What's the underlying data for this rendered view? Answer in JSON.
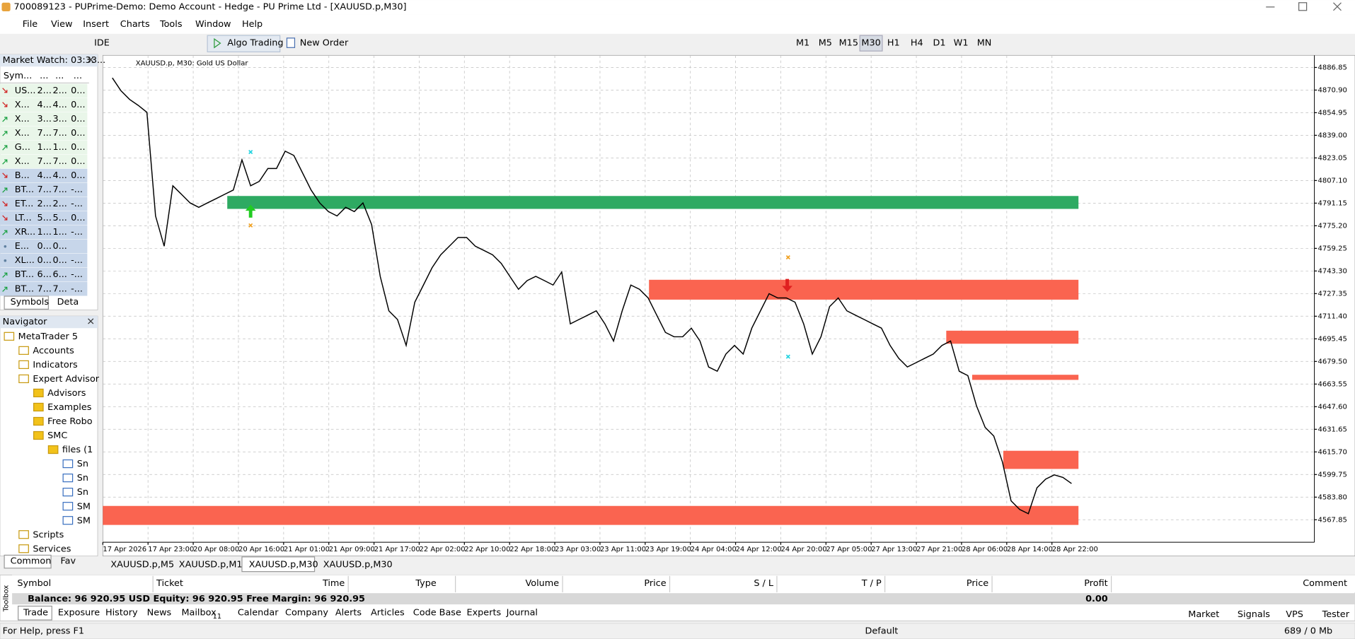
{
  "window": {
    "title": "700089123 - PUPrime-Demo: Demo Account - Hedge - PU Prime Ltd - [XAUUSD.p,M30]"
  },
  "menu": [
    "File",
    "View",
    "Insert",
    "Charts",
    "Tools",
    "Window",
    "Help"
  ],
  "toolbar": {
    "ide": "IDE",
    "algo_trading": "Algo Trading",
    "new_order": "New Order",
    "timeframes": [
      "M1",
      "M5",
      "M15",
      "M30",
      "H1",
      "H4",
      "D1",
      "W1",
      "MN"
    ],
    "active_timeframe": 3
  },
  "market_watch": {
    "title": "Market Watch: 03:33...",
    "columns": [
      "Sym...",
      "...",
      "...",
      "..."
    ],
    "rows": [
      {
        "cells": [
          "US...",
          "2...",
          "2...",
          "0..."
        ],
        "trend": "down"
      },
      {
        "cells": [
          "X...",
          "4...",
          "4...",
          "0..."
        ],
        "trend": "down"
      },
      {
        "cells": [
          "X...",
          "3...",
          "3...",
          "0..."
        ],
        "trend": "up"
      },
      {
        "cells": [
          "X...",
          "7...",
          "7...",
          "0..."
        ],
        "trend": "up"
      },
      {
        "cells": [
          "G...",
          "1...",
          "1...",
          "0..."
        ],
        "trend": "up"
      },
      {
        "cells": [
          "X...",
          "7...",
          "7...",
          "0..."
        ],
        "trend": "up"
      },
      {
        "cells": [
          "B...",
          "4...",
          "4...",
          "0..."
        ],
        "trend": "down"
      },
      {
        "cells": [
          "BT...",
          "7...",
          "7...",
          "-..."
        ],
        "trend": "up"
      },
      {
        "cells": [
          "ET...",
          "2...",
          "2...",
          "-..."
        ],
        "trend": "down"
      },
      {
        "cells": [
          "LT...",
          "5...",
          "5...",
          "0..."
        ],
        "trend": "down"
      },
      {
        "cells": [
          "XR...",
          "1...",
          "1...",
          "-..."
        ],
        "trend": "up"
      },
      {
        "cells": [
          "E...",
          "0...",
          "0..."
        ],
        "trend": "flat"
      },
      {
        "cells": [
          "XL...",
          "0...",
          "0...",
          "-..."
        ],
        "trend": "flat"
      },
      {
        "cells": [
          "BT...",
          "6...",
          "6...",
          "-..."
        ],
        "trend": "up"
      },
      {
        "cells": [
          "BT...",
          "7...",
          "7...",
          "-..."
        ],
        "trend": "up"
      }
    ],
    "tabs": [
      "Symbols",
      "Deta"
    ]
  },
  "navigator": {
    "title": "Navigator",
    "items": [
      {
        "label": "MetaTrader 5",
        "level": 0
      },
      {
        "label": "Accounts",
        "level": 1
      },
      {
        "label": "Indicators",
        "level": 1
      },
      {
        "label": "Expert Advisor",
        "level": 1
      },
      {
        "label": "Advisors",
        "level": 2
      },
      {
        "label": "Examples",
        "level": 2
      },
      {
        "label": "Free Robo",
        "level": 2
      },
      {
        "label": "SMC",
        "level": 2
      },
      {
        "label": "files (1",
        "level": 3
      },
      {
        "label": "Sn",
        "level": 4
      },
      {
        "label": "Sn",
        "level": 4
      },
      {
        "label": "Sn",
        "level": 4
      },
      {
        "label": "SM",
        "level": 4
      },
      {
        "label": "SM",
        "level": 4
      },
      {
        "label": "Scripts",
        "level": 1
      },
      {
        "label": "Services",
        "level": 1
      }
    ],
    "tabs": [
      "Common",
      "Fav"
    ]
  },
  "chart_data": {
    "type": "line",
    "title": "XAUUSD.p, M30:  Gold US Dollar",
    "color": "#000000",
    "grid": true,
    "ylim": [
      4552.0,
      4895.4
    ],
    "yticks": [
      4886.85,
      {
        "value": 4870.9,
        "label": "4870.90"
      },
      4854.95,
      {
        "value": 4839.0,
        "label": "4839.00"
      },
      4823.05,
      {
        "value": 4807.1,
        "label": "4807.10"
      },
      4791.15,
      {
        "value": 4775.2,
        "label": "4775.20"
      },
      4759.25,
      {
        "value": 4743.3,
        "label": "4743.30"
      },
      4727.35,
      {
        "value": 4711.4,
        "label": "4711.40"
      },
      4695.45,
      {
        "value": 4679.5,
        "label": "4679.50"
      },
      4663.55,
      {
        "value": 4647.6,
        "label": "4647.60"
      },
      4631.65,
      {
        "value": 4615.7,
        "label": "4615.70"
      },
      4599.75,
      {
        "value": 4583.8,
        "label": "4583.80"
      },
      4567.85
    ],
    "time_labels": [
      "17 Apr 2026",
      "17 Apr 23:00",
      "20 Apr 08:00",
      "20 Apr 16:00",
      "21 Apr 01:00",
      "21 Apr 09:00",
      "21 Apr 17:00",
      "22 Apr 02:00",
      "22 Apr 10:00",
      "22 Apr 18:00",
      "23 Apr 03:00",
      "23 Apr 11:00",
      "23 Apr 19:00",
      "24 Apr 04:00",
      "24 Apr 12:00",
      "24 Apr 20:00",
      "27 Apr 05:00",
      "27 Apr 13:00",
      "27 Apr 21:00",
      "28 Apr 06:00",
      "28 Apr 14:00",
      "28 Apr 22:00"
    ],
    "values": [
      4879.5,
      4870.4,
      4864.3,
      4860.1,
      4855.2,
      4782.1,
      4760.8,
      4803.4,
      4797.4,
      4791.3,
      4788.2,
      4791.3,
      4794.3,
      4797.4,
      4800.4,
      4821.7,
      4803.4,
      4806.5,
      4815.6,
      4815.6,
      4827.8,
      4824.8,
      4812.6,
      4800.4,
      4791.3,
      4785.2,
      4782.1,
      4788.2,
      4785.2,
      4791.3,
      4776.1,
      4739.5,
      4715.2,
      4709.1,
      4690.8,
      4721.3,
      4733.4,
      4745.6,
      4754.7,
      4760.8,
      4766.9,
      4766.9,
      4760.8,
      4757.8,
      4754.7,
      4748.7,
      4739.5,
      4730.4,
      4736.5,
      4739.5,
      4736.5,
      4733.4,
      4742.6,
      4706.0,
      4709.1,
      4712.1,
      4715.2,
      4706.0,
      4693.9,
      4715.2,
      4733.4,
      4730.4,
      4724.3,
      4712.1,
      4700.0,
      4696.9,
      4696.9,
      4703.0,
      4693.9,
      4675.6,
      4672.6,
      4684.7,
      4690.8,
      4684.7,
      4703.0,
      4715.2,
      4727.3,
      4724.3,
      4724.3,
      4721.3,
      4706.0,
      4684.7,
      4696.9,
      4718.2,
      4724.3,
      4715.2,
      4712.1,
      4709.1,
      4706.0,
      4703.0,
      4690.8,
      4681.7,
      4675.6,
      4678.6,
      4681.7,
      4684.7,
      4690.8,
      4693.9,
      4672.6,
      4669.5,
      4648.2,
      4633.0,
      4626.9,
      4608.6,
      4581.2,
      4575.1,
      4572.1,
      4590.4,
      4596.5,
      4599.5,
      4597.7,
      4593.4
    ],
    "zones": [
      {
        "color": "#2eaa62",
        "top": 4796.2,
        "bottom": 4787.1
      },
      {
        "color": "#fa6450",
        "top": 4737.1,
        "bottom": 4723.1
      },
      {
        "color": "#fa6450",
        "top": 4701.2,
        "bottom": 4692.0
      },
      {
        "color": "#fa6450",
        "top": 4670.1,
        "bottom": 4666.5
      },
      {
        "color": "#fa6450",
        "top": 4616.5,
        "bottom": 4603.7
      },
      {
        "color": "#fa6450",
        "top": 4577.6,
        "bottom": 4564.2
      }
    ]
  },
  "chart_tabs": {
    "items": [
      "XAUUSD.p,M5",
      "XAUUSD.p,M1",
      "XAUUSD.p,M30",
      "XAUUSD.p,M30"
    ],
    "active": 2
  },
  "toolbox": {
    "label": "Toolbox",
    "columns": [
      "Symbol",
      "Ticket",
      "Time",
      "Type",
      "Volume",
      "Price",
      "S / L",
      "T / P",
      "Price",
      "Profit",
      "Comment"
    ],
    "balance": "Balance: 96 920.95 USD  Equity: 96 920.95  Free Margin: 96 920.95",
    "profit": "0.00",
    "tabs": [
      "Trade",
      "Exposure",
      "History",
      "News",
      "Mailbox",
      "Calendar",
      "Company",
      "Alerts",
      "Articles",
      "Code Base",
      "Experts",
      "Journal"
    ],
    "mailbox_count": "11",
    "active_tab": 0,
    "right_tabs": [
      "Market",
      "Signals",
      "VPS",
      "Tester"
    ]
  },
  "status": {
    "help": "For Help, press F1",
    "profile": "Default",
    "memory": "689 / 0 Mb"
  }
}
